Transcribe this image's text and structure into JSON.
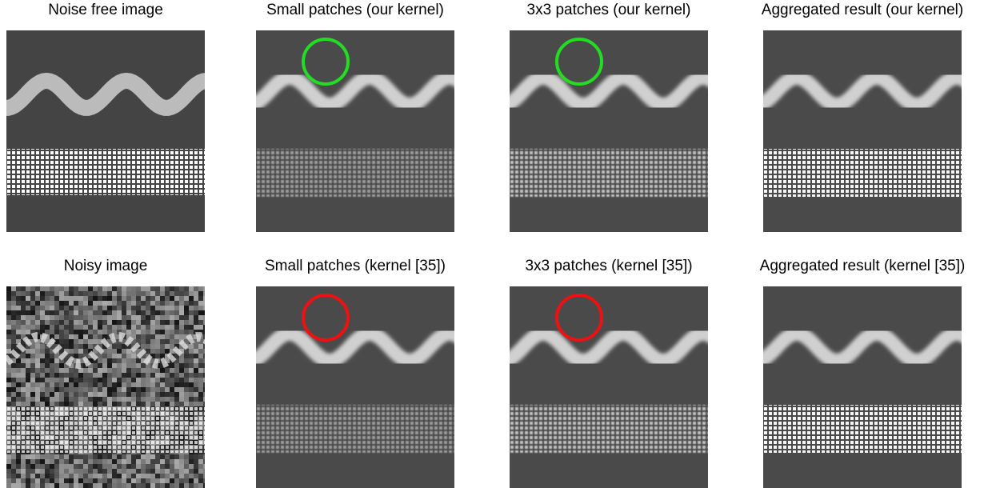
{
  "panels": [
    {
      "title": "Noise free image"
    },
    {
      "title": "Small patches (our kernel)"
    },
    {
      "title": "3x3 patches (our kernel)"
    },
    {
      "title": "Aggregated result (our kernel)"
    },
    {
      "title": "Noisy image"
    },
    {
      "title": "Small patches (kernel [35])"
    },
    {
      "title": "3x3 patches (kernel [35])"
    },
    {
      "title": "Aggregated result (kernel [35])"
    }
  ]
}
